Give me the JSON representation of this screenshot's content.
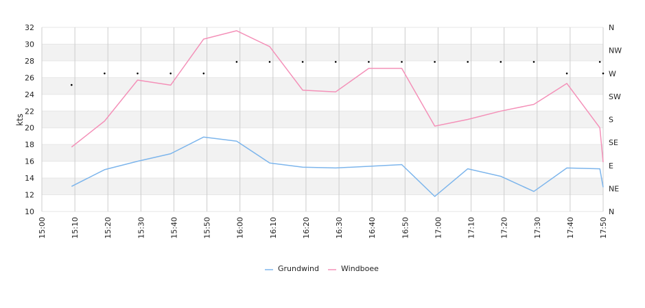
{
  "chart_data": {
    "type": "line",
    "ylabel": "kts",
    "ylim": [
      10,
      32
    ],
    "y_ticks": [
      "10",
      "12",
      "14",
      "16",
      "18",
      "20",
      "22",
      "24",
      "26",
      "28",
      "30",
      "32"
    ],
    "x_ticks": [
      "15:00",
      "15:10",
      "15:20",
      "15:30",
      "15:40",
      "15:50",
      "16:00",
      "16:10",
      "16:20",
      "16:30",
      "16:40",
      "16:50",
      "17:00",
      "17:10",
      "17:20",
      "17:30",
      "17:40",
      "17:50"
    ],
    "y2_ticks": [
      "N",
      "NE",
      "E",
      "SE",
      "S",
      "SW",
      "W",
      "NW",
      "N"
    ],
    "grid": true,
    "legend_position": "bottom",
    "series": [
      {
        "name": "Grundwind",
        "color": "#7cb5ec",
        "x": [
          "15:09",
          "15:19",
          "15:29",
          "15:39",
          "15:49",
          "15:59",
          "16:09",
          "16:19",
          "16:29",
          "16:39",
          "16:49",
          "16:59",
          "17:09",
          "17:19",
          "17:29",
          "17:39",
          "17:49",
          "17:50"
        ],
        "values": [
          13.0,
          15.0,
          16.0,
          16.9,
          18.9,
          18.4,
          15.8,
          15.3,
          15.2,
          15.4,
          15.6,
          11.8,
          15.1,
          14.2,
          12.4,
          15.2,
          15.1,
          12.9
        ]
      },
      {
        "name": "Windboee",
        "color": "#f490b8",
        "x": [
          "15:09",
          "15:19",
          "15:29",
          "15:39",
          "15:49",
          "15:59",
          "16:09",
          "16:19",
          "16:29",
          "16:39",
          "16:49",
          "16:59",
          "17:09",
          "17:19",
          "17:29",
          "17:39",
          "17:49",
          "17:50"
        ],
        "values": [
          17.7,
          20.8,
          25.7,
          25.1,
          30.6,
          31.6,
          29.7,
          24.5,
          24.3,
          27.1,
          27.1,
          20.2,
          21.0,
          22.0,
          22.8,
          25.3,
          20.0,
          15.9
        ]
      }
    ],
    "direction": {
      "color": "#000000",
      "x": [
        "15:09",
        "15:19",
        "15:29",
        "15:39",
        "15:49",
        "15:59",
        "16:09",
        "16:19",
        "16:29",
        "16:39",
        "16:49",
        "16:59",
        "17:09",
        "17:19",
        "17:29",
        "17:39",
        "17:49",
        "17:50"
      ],
      "values": [
        "WSW",
        "W",
        "W",
        "W",
        "W",
        "WNW",
        "WNW",
        "WNW",
        "WNW",
        "WNW",
        "WNW",
        "WNW",
        "WNW",
        "WNW",
        "WNW",
        "W",
        "WNW",
        "W"
      ]
    }
  }
}
